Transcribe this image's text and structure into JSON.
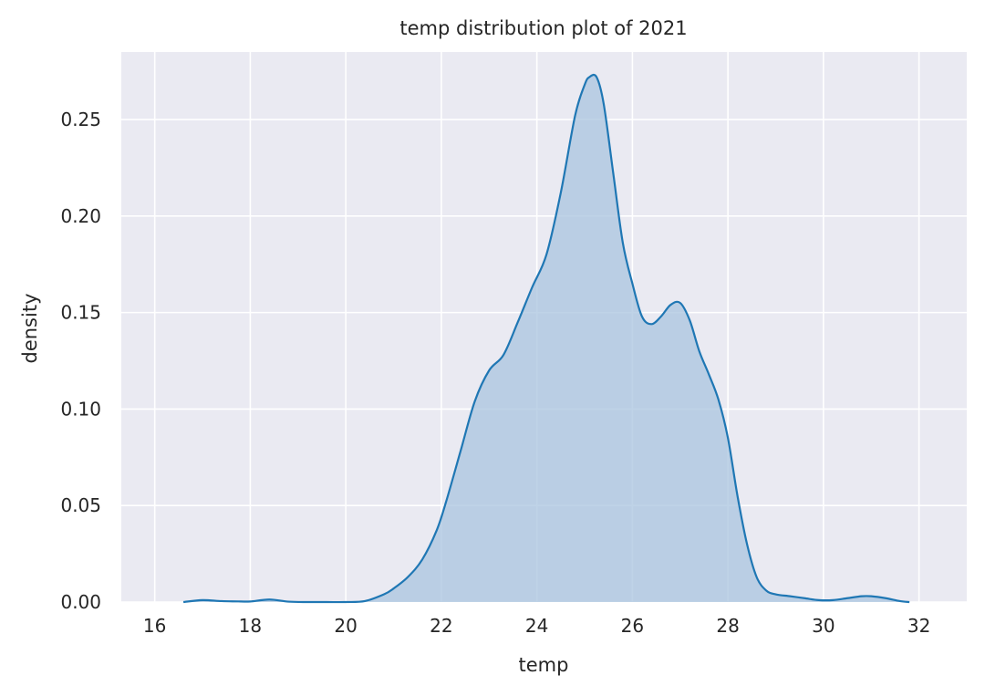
{
  "chart_data": {
    "type": "area",
    "title": "temp distribution plot of 2021",
    "xlabel": "temp",
    "ylabel": "density",
    "xlim": [
      15.3,
      33.0
    ],
    "ylim": [
      0,
      0.285
    ],
    "xticks": [
      16,
      18,
      20,
      22,
      24,
      26,
      28,
      30,
      32
    ],
    "yticks": [
      0.0,
      0.05,
      0.1,
      0.15,
      0.2,
      0.25
    ],
    "ytick_labels": [
      "0.00",
      "0.05",
      "0.10",
      "0.15",
      "0.20",
      "0.25"
    ],
    "grid": true,
    "legend": "none",
    "colors": {
      "background": "#eaeaf2",
      "grid": "#ffffff",
      "line": "#1f77b4",
      "fill": "#a9c4df"
    },
    "series": [
      {
        "x": [
          16.6,
          17.0,
          17.4,
          17.8,
          18.0,
          18.4,
          18.8,
          19.2,
          19.6,
          20.0,
          20.4,
          20.8,
          21.0,
          21.3,
          21.6,
          21.9,
          22.1,
          22.4,
          22.7,
          23.0,
          23.3,
          23.6,
          23.9,
          24.2,
          24.5,
          24.8,
          25.0,
          25.1,
          25.25,
          25.4,
          25.6,
          25.8,
          26.0,
          26.2,
          26.4,
          26.6,
          26.8,
          27.0,
          27.2,
          27.4,
          27.6,
          27.8,
          28.0,
          28.2,
          28.4,
          28.6,
          28.8,
          29.0,
          29.3,
          29.6,
          29.9,
          30.2,
          30.5,
          30.8,
          31.0,
          31.3,
          31.6,
          31.8
        ],
        "y": [
          0.0,
          0.001,
          0.0005,
          0.0003,
          0.0003,
          0.0013,
          0.0002,
          0.0,
          0.0,
          0.0,
          0.0005,
          0.004,
          0.007,
          0.013,
          0.022,
          0.037,
          0.052,
          0.078,
          0.104,
          0.12,
          0.128,
          0.145,
          0.163,
          0.18,
          0.212,
          0.252,
          0.268,
          0.272,
          0.272,
          0.258,
          0.222,
          0.186,
          0.165,
          0.148,
          0.144,
          0.148,
          0.154,
          0.155,
          0.146,
          0.13,
          0.118,
          0.105,
          0.085,
          0.055,
          0.03,
          0.013,
          0.006,
          0.004,
          0.003,
          0.002,
          0.001,
          0.001,
          0.002,
          0.003,
          0.003,
          0.002,
          0.0005,
          0.0
        ]
      }
    ]
  }
}
